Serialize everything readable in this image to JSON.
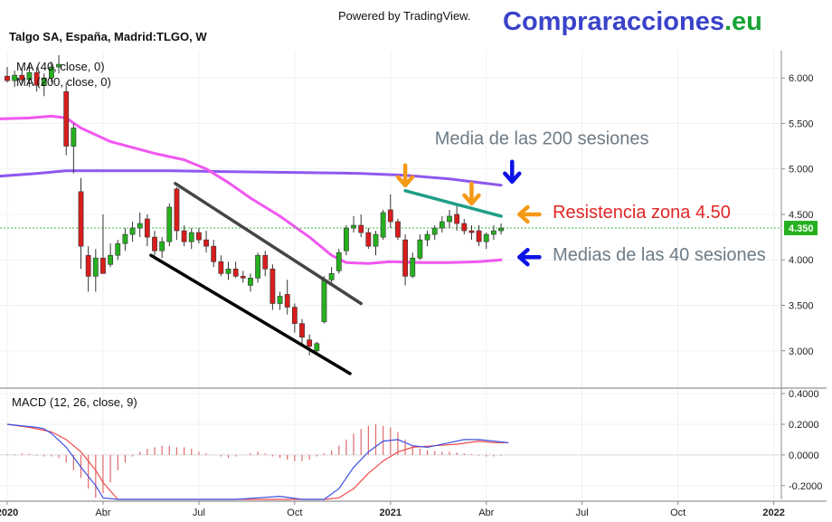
{
  "header": {
    "powered_by": "Powered by TradingView.",
    "brand": "Compraracciones",
    "brand_tld": ".eu",
    "brand_color": "#3a43c9",
    "brand_tld_color": "#19a337"
  },
  "chart_data": [
    {
      "type": "candlestick",
      "title": "Talgo SA, España, Madrid:TLGO, W",
      "indicators": [
        "MA (40, close, 0)",
        "MA (200, close, 0)"
      ],
      "ylim": [
        2.6,
        6.3
      ],
      "yticks": [
        "6.000",
        "5.500",
        "5.000",
        "4.500",
        "4.000",
        "3.500",
        "3.000"
      ],
      "ytick_values": [
        6.0,
        5.5,
        5.0,
        4.5,
        4.0,
        3.5,
        3.0
      ],
      "xtick_labels": [
        "2020",
        "Abr",
        "Jul",
        "Oct",
        "2021",
        "Abr",
        "Jul",
        "Oct",
        "2022"
      ],
      "xtick_bold": [
        true,
        false,
        false,
        false,
        true,
        false,
        false,
        false,
        true
      ],
      "xtick_weeks": [
        0,
        13,
        26,
        39,
        52,
        65,
        78,
        91,
        104
      ],
      "last_price": "4.350",
      "last_price_value": 4.35,
      "colors": {
        "up": "#26b01f",
        "down": "#d81d1d",
        "ma40": "#f157f0",
        "ma200": "#8f58ef",
        "price_line": "#3cb83c"
      },
      "candles": [
        {
          "o": 6.02,
          "h": 6.12,
          "l": 5.95,
          "c": 5.97
        },
        {
          "o": 5.97,
          "h": 6.08,
          "l": 5.9,
          "c": 6.03
        },
        {
          "o": 6.03,
          "h": 6.1,
          "l": 5.94,
          "c": 5.98
        },
        {
          "o": 5.98,
          "h": 6.15,
          "l": 5.9,
          "c": 6.06
        },
        {
          "o": 6.06,
          "h": 6.12,
          "l": 5.85,
          "c": 5.92
        },
        {
          "o": 5.92,
          "h": 6.05,
          "l": 5.8,
          "c": 6.0
        },
        {
          "o": 6.0,
          "h": 6.18,
          "l": 5.95,
          "c": 6.12
        },
        {
          "o": 6.12,
          "h": 6.25,
          "l": 6.05,
          "c": 6.15
        },
        {
          "o": 5.85,
          "h": 5.95,
          "l": 5.15,
          "c": 5.25
        },
        {
          "o": 5.25,
          "h": 5.5,
          "l": 4.95,
          "c": 5.45
        },
        {
          "o": 4.75,
          "h": 4.9,
          "l": 3.9,
          "c": 4.15
        },
        {
          "o": 4.05,
          "h": 4.15,
          "l": 3.65,
          "c": 3.82
        },
        {
          "o": 3.82,
          "h": 4.12,
          "l": 3.65,
          "c": 4.02
        },
        {
          "o": 4.02,
          "h": 4.5,
          "l": 3.85,
          "c": 3.85
        },
        {
          "o": 3.95,
          "h": 4.18,
          "l": 3.92,
          "c": 4.05
        },
        {
          "o": 4.05,
          "h": 4.22,
          "l": 4.0,
          "c": 4.18
        },
        {
          "o": 4.18,
          "h": 4.35,
          "l": 4.1,
          "c": 4.28
        },
        {
          "o": 4.28,
          "h": 4.42,
          "l": 4.2,
          "c": 4.35
        },
        {
          "o": 4.35,
          "h": 4.52,
          "l": 4.25,
          "c": 4.4
        },
        {
          "o": 4.45,
          "h": 4.5,
          "l": 4.15,
          "c": 4.25
        },
        {
          "o": 4.25,
          "h": 4.32,
          "l": 4.05,
          "c": 4.1
        },
        {
          "o": 4.1,
          "h": 4.25,
          "l": 4.02,
          "c": 4.2
        },
        {
          "o": 4.2,
          "h": 4.62,
          "l": 4.15,
          "c": 4.58
        },
        {
          "o": 4.78,
          "h": 4.8,
          "l": 4.22,
          "c": 4.32
        },
        {
          "o": 4.32,
          "h": 4.38,
          "l": 4.15,
          "c": 4.2
        },
        {
          "o": 4.2,
          "h": 4.35,
          "l": 4.12,
          "c": 4.3
        },
        {
          "o": 4.3,
          "h": 4.35,
          "l": 4.18,
          "c": 4.22
        },
        {
          "o": 4.22,
          "h": 4.32,
          "l": 4.08,
          "c": 4.15
        },
        {
          "o": 4.15,
          "h": 4.22,
          "l": 3.92,
          "c": 3.98
        },
        {
          "o": 3.98,
          "h": 4.05,
          "l": 3.82,
          "c": 3.85
        },
        {
          "o": 3.85,
          "h": 3.98,
          "l": 3.78,
          "c": 3.9
        },
        {
          "o": 3.9,
          "h": 3.98,
          "l": 3.8,
          "c": 3.82
        },
        {
          "o": 3.82,
          "h": 3.88,
          "l": 3.75,
          "c": 3.8
        },
        {
          "o": 3.72,
          "h": 3.85,
          "l": 3.65,
          "c": 3.8
        },
        {
          "o": 3.8,
          "h": 4.08,
          "l": 3.75,
          "c": 4.05
        },
        {
          "o": 4.05,
          "h": 4.1,
          "l": 3.82,
          "c": 3.9
        },
        {
          "o": 3.9,
          "h": 3.95,
          "l": 3.45,
          "c": 3.52
        },
        {
          "o": 3.52,
          "h": 3.65,
          "l": 3.45,
          "c": 3.6
        },
        {
          "o": 3.62,
          "h": 3.78,
          "l": 3.4,
          "c": 3.48
        },
        {
          "o": 3.48,
          "h": 3.52,
          "l": 3.2,
          "c": 3.3
        },
        {
          "o": 3.3,
          "h": 3.35,
          "l": 3.08,
          "c": 3.15
        },
        {
          "o": 3.12,
          "h": 3.18,
          "l": 2.95,
          "c": 3.05
        },
        {
          "o": 3.0,
          "h": 3.1,
          "l": 2.95,
          "c": 3.08
        },
        {
          "o": 3.32,
          "h": 3.82,
          "l": 3.3,
          "c": 3.78
        },
        {
          "o": 3.78,
          "h": 3.92,
          "l": 3.75,
          "c": 3.85
        },
        {
          "o": 3.88,
          "h": 4.12,
          "l": 3.85,
          "c": 4.08
        },
        {
          "o": 4.1,
          "h": 4.38,
          "l": 4.05,
          "c": 4.35
        },
        {
          "o": 4.35,
          "h": 4.48,
          "l": 4.3,
          "c": 4.38
        },
        {
          "o": 4.38,
          "h": 4.5,
          "l": 4.25,
          "c": 4.3
        },
        {
          "o": 4.3,
          "h": 4.35,
          "l": 4.12,
          "c": 4.15
        },
        {
          "o": 4.15,
          "h": 4.32,
          "l": 4.05,
          "c": 4.28
        },
        {
          "o": 4.25,
          "h": 4.55,
          "l": 4.22,
          "c": 4.52
        },
        {
          "o": 4.55,
          "h": 4.72,
          "l": 4.35,
          "c": 4.42
        },
        {
          "o": 4.42,
          "h": 4.45,
          "l": 4.22,
          "c": 4.25
        },
        {
          "o": 4.22,
          "h": 4.28,
          "l": 3.72,
          "c": 3.82
        },
        {
          "o": 3.82,
          "h": 4.08,
          "l": 3.8,
          "c": 4.02
        },
        {
          "o": 4.02,
          "h": 4.28,
          "l": 4.0,
          "c": 4.22
        },
        {
          "o": 4.22,
          "h": 4.32,
          "l": 4.15,
          "c": 4.28
        },
        {
          "o": 4.28,
          "h": 4.38,
          "l": 4.22,
          "c": 4.35
        },
        {
          "o": 4.35,
          "h": 4.48,
          "l": 4.3,
          "c": 4.42
        },
        {
          "o": 4.42,
          "h": 4.55,
          "l": 4.35,
          "c": 4.48
        },
        {
          "o": 4.5,
          "h": 4.62,
          "l": 4.32,
          "c": 4.4
        },
        {
          "o": 4.4,
          "h": 4.45,
          "l": 4.28,
          "c": 4.32
        },
        {
          "o": 4.32,
          "h": 4.38,
          "l": 4.22,
          "c": 4.3
        },
        {
          "o": 4.32,
          "h": 4.38,
          "l": 4.15,
          "c": 4.2
        },
        {
          "o": 4.2,
          "h": 4.3,
          "l": 4.12,
          "c": 4.28
        },
        {
          "o": 4.28,
          "h": 4.38,
          "l": 4.22,
          "c": 4.32
        },
        {
          "o": 4.32,
          "h": 4.4,
          "l": 4.28,
          "c": 4.35
        }
      ],
      "ma40": [
        [
          -1,
          5.55
        ],
        [
          3,
          5.56
        ],
        [
          6,
          5.58
        ],
        [
          8,
          5.56
        ],
        [
          10,
          5.45
        ],
        [
          14,
          5.3
        ],
        [
          20,
          5.17
        ],
        [
          24,
          5.1
        ],
        [
          27,
          5.0
        ],
        [
          30,
          4.85
        ],
        [
          33,
          4.68
        ],
        [
          37,
          4.48
        ],
        [
          41,
          4.25
        ],
        [
          44,
          4.05
        ],
        [
          46,
          3.97
        ],
        [
          49,
          3.96
        ],
        [
          52,
          3.98
        ],
        [
          56,
          3.97
        ],
        [
          60,
          3.97
        ],
        [
          64,
          3.98
        ],
        [
          67,
          4.0
        ]
      ],
      "ma200": [
        [
          -1,
          4.92
        ],
        [
          4,
          4.95
        ],
        [
          8,
          4.98
        ],
        [
          14,
          4.98
        ],
        [
          22,
          4.98
        ],
        [
          30,
          4.97
        ],
        [
          40,
          4.96
        ],
        [
          48,
          4.95
        ],
        [
          54,
          4.93
        ],
        [
          60,
          4.89
        ],
        [
          64,
          4.85
        ],
        [
          67,
          4.82
        ]
      ],
      "drawn_lines": [
        {
          "color": "#454545",
          "from": [
            22.8,
            4.84
          ],
          "to": [
            48,
            3.52
          ]
        },
        {
          "color": "#000000",
          "from": [
            19.5,
            4.05
          ],
          "to": [
            46.5,
            2.75
          ]
        },
        {
          "color": "#1f9e87",
          "from": [
            54,
            4.76
          ],
          "to": [
            67,
            4.48
          ]
        }
      ],
      "annotations": [
        {
          "text": "Media de las 200 sesiones",
          "color": "#6d7b86",
          "at": [
            58,
            5.27
          ]
        },
        {
          "text": "Resistencia zona 4.50",
          "color": "#e32525",
          "at": [
            74,
            4.46
          ]
        },
        {
          "text": "Medias de las 40 sesiones",
          "color": "#6d7b86",
          "at": [
            74,
            3.99
          ]
        }
      ],
      "arrows": [
        {
          "color": "#f59a17",
          "dir": "down",
          "at": [
            54,
            4.82
          ]
        },
        {
          "color": "#f59a17",
          "dir": "down",
          "at": [
            63,
            4.62
          ]
        },
        {
          "color": "#0c12e6",
          "dir": "down",
          "at": [
            68.5,
            4.86
          ]
        },
        {
          "color": "#f59a17",
          "dir": "left",
          "at": [
            69.5,
            4.5
          ]
        },
        {
          "color": "#0c12e6",
          "dir": "left",
          "at": [
            69.5,
            4.03
          ]
        }
      ]
    },
    {
      "type": "line",
      "title": "MACD (12, 26, close, 9)",
      "ylim": [
        -0.29,
        0.43
      ],
      "yticks": [
        "0.4000",
        "0.2000",
        "0.0000",
        "-0.2000"
      ],
      "ytick_values": [
        0.4,
        0.2,
        0.0,
        -0.2
      ],
      "colors": {
        "macd": "#3d50e6",
        "signal": "#f04a4a",
        "histogram": "#e06a6a"
      },
      "macd": [
        [
          0,
          0.2
        ],
        [
          2,
          0.19
        ],
        [
          4,
          0.18
        ],
        [
          5,
          0.17
        ],
        [
          6,
          0.14
        ],
        [
          8,
          0.05
        ],
        [
          10,
          -0.08
        ],
        [
          12,
          -0.2
        ],
        [
          13,
          -0.28
        ],
        [
          15,
          -0.34
        ],
        [
          20,
          -0.33
        ],
        [
          24,
          -0.29
        ],
        [
          28,
          -0.3
        ],
        [
          29,
          -0.29
        ],
        [
          31,
          -0.3
        ],
        [
          34,
          -0.28
        ],
        [
          37,
          -0.27
        ],
        [
          40,
          -0.3
        ],
        [
          43,
          -0.29
        ],
        [
          45,
          -0.22
        ],
        [
          47,
          -0.08
        ],
        [
          49,
          0.02
        ],
        [
          51,
          0.09
        ],
        [
          53,
          0.1
        ],
        [
          55,
          0.06
        ],
        [
          57,
          0.05
        ],
        [
          60,
          0.08
        ],
        [
          62,
          0.1
        ],
        [
          64,
          0.1
        ],
        [
          66,
          0.09
        ],
        [
          68,
          0.08
        ]
      ],
      "signal": [
        [
          0,
          0.2
        ],
        [
          3,
          0.18
        ],
        [
          6,
          0.15
        ],
        [
          8,
          0.1
        ],
        [
          10,
          0.02
        ],
        [
          12,
          -0.1
        ],
        [
          13,
          -0.18
        ],
        [
          15,
          -0.32
        ],
        [
          20,
          -0.34
        ],
        [
          28,
          -0.33
        ],
        [
          32,
          -0.29
        ],
        [
          36,
          -0.29
        ],
        [
          40,
          -0.3
        ],
        [
          43,
          -0.3
        ],
        [
          45,
          -0.28
        ],
        [
          47,
          -0.22
        ],
        [
          49,
          -0.12
        ],
        [
          51,
          -0.04
        ],
        [
          53,
          0.02
        ],
        [
          55,
          0.05
        ],
        [
          58,
          0.06
        ],
        [
          61,
          0.07
        ],
        [
          64,
          0.09
        ],
        [
          66,
          0.08
        ],
        [
          68,
          0.08
        ]
      ],
      "histogram": [
        0.005,
        0.005,
        0.008,
        0.008,
        -0.005,
        -0.01,
        -0.01,
        -0.02,
        -0.05,
        -0.1,
        -0.15,
        -0.22,
        -0.28,
        -0.25,
        -0.18,
        -0.1,
        -0.05,
        -0.01,
        0.02,
        0.04,
        0.05,
        0.06,
        0.06,
        0.05,
        0.05,
        0.04,
        0.02,
        0.01,
        0.0,
        -0.01,
        -0.02,
        -0.01,
        0.0,
        0.01,
        0.02,
        0.01,
        -0.01,
        -0.02,
        -0.03,
        -0.04,
        -0.04,
        -0.03,
        -0.01,
        0.01,
        0.03,
        0.06,
        0.1,
        0.14,
        0.17,
        0.19,
        0.2,
        0.19,
        0.18,
        0.15,
        0.1,
        0.06,
        0.04,
        0.03,
        0.025,
        0.02,
        0.02,
        0.015,
        0.01,
        0.005,
        -0.005,
        -0.01,
        -0.01,
        -0.005
      ]
    }
  ]
}
